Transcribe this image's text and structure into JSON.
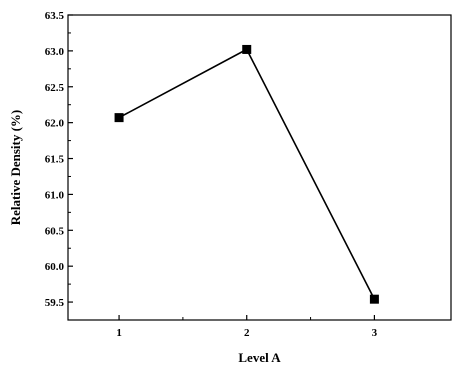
{
  "chart_data": {
    "type": "line",
    "title": "",
    "xlabel": "Level A",
    "ylabel": "Relative Density (%)",
    "categories": [
      "1",
      "2",
      "3"
    ],
    "x": [
      1,
      2,
      3
    ],
    "series": [
      {
        "values": [
          62.07,
          63.02,
          59.54
        ]
      }
    ],
    "xlim": [
      0.6,
      3.6
    ],
    "ylim": [
      59.25,
      63.5
    ],
    "yticks": [
      "59.5",
      "60.0",
      "60.5",
      "61.0",
      "61.5",
      "62.0",
      "62.5",
      "63.0",
      "63.5"
    ],
    "grid": false,
    "marker": "square",
    "line_color": "#000000",
    "marker_color": "#000000"
  }
}
